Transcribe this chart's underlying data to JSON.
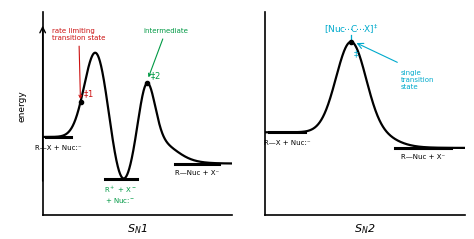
{
  "bg_color": "#ffffff",
  "sn1_label": "S$_N$1",
  "sn2_label": "S$_N$2",
  "energy_label": "energy",
  "left_reactant": "R—X + Nuc:⁻",
  "left_intermediate": "R$^+$ + X$^-$\n+ Nuc:$^-$",
  "left_product": "R—Nuc + X⁻",
  "right_reactant": "R—X + Nuc:⁻",
  "right_product": "R—Nuc + X⁻",
  "rate_limiting_label": "rate limiting\ntransition state",
  "intermediate_label": "intermediate",
  "single_ts_label": "single\ntransition\nstate",
  "red_color": "#cc1111",
  "green_color": "#009944",
  "cyan_color": "#00aacc",
  "black_color": "#000000",
  "sn1_ylim": [
    -0.15,
    1.15
  ],
  "sn2_ylim": [
    -0.15,
    1.15
  ]
}
